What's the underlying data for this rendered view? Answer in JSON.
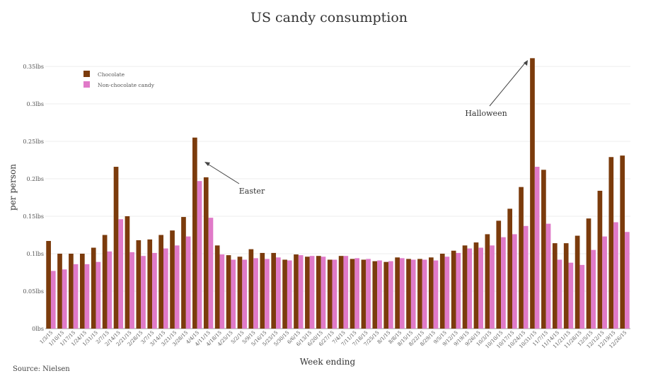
{
  "source": "Source: Nielsen",
  "chart_data": {
    "type": "bar",
    "title": "US candy consumption",
    "xlabel": "Week ending",
    "ylabel": "per person",
    "ylim": [
      0,
      0.35
    ],
    "yticks": [
      0,
      0.05,
      0.1,
      0.15,
      0.2,
      0.25,
      0.3,
      0.35
    ],
    "ytick_labels": [
      "0lbs",
      "0.05lbs",
      "0.1lbs",
      "0.15lbs",
      "0.2lbs",
      "0.25lbs",
      "0.3lbs",
      "0.35lbs"
    ],
    "grid": true,
    "legend_position": "top-left",
    "categories": [
      "1/3/15",
      "1/10/15",
      "1/17/15",
      "1/24/15",
      "1/31/15",
      "2/7/15",
      "2/14/15",
      "2/21/15",
      "2/28/15",
      "3/7/15",
      "3/14/15",
      "3/21/15",
      "3/28/15",
      "4/4/15",
      "4/11/15",
      "4/18/15",
      "4/25/15",
      "5/2/15",
      "5/9/15",
      "5/16/15",
      "5/23/15",
      "5/30/15",
      "6/6/15",
      "6/13/15",
      "6/20/15",
      "6/27/15",
      "7/4/15",
      "7/11/15",
      "7/18/15",
      "7/25/15",
      "8/1/15",
      "8/8/15",
      "8/15/15",
      "8/22/15",
      "8/29/15",
      "9/5/15",
      "9/12/15",
      "9/19/15",
      "9/26/15",
      "10/3/15",
      "10/10/15",
      "10/17/15",
      "10/24/15",
      "10/31/15",
      "11/7/15",
      "11/14/15",
      "11/21/15",
      "11/28/15",
      "12/5/15",
      "12/12/15",
      "12/19/15",
      "12/26/15"
    ],
    "series": [
      {
        "name": "Chocolate",
        "color": "#7b3b0c",
        "values": [
          0.117,
          0.1,
          0.1,
          0.1,
          0.108,
          0.125,
          0.216,
          0.15,
          0.118,
          0.119,
          0.125,
          0.131,
          0.149,
          0.255,
          0.202,
          0.111,
          0.098,
          0.096,
          0.106,
          0.101,
          0.101,
          0.092,
          0.099,
          0.096,
          0.097,
          0.092,
          0.097,
          0.093,
          0.092,
          0.09,
          0.089,
          0.095,
          0.093,
          0.093,
          0.095,
          0.1,
          0.104,
          0.111,
          0.115,
          0.126,
          0.144,
          0.16,
          0.189,
          0.361,
          0.212,
          0.114,
          0.114,
          0.124,
          0.147,
          0.184,
          0.229,
          0.231
        ]
      },
      {
        "name": "Non-chocolate candy",
        "color": "#e07ac8",
        "values": [
          0.077,
          0.079,
          0.086,
          0.086,
          0.089,
          0.103,
          0.146,
          0.102,
          0.097,
          0.101,
          0.107,
          0.111,
          0.123,
          0.197,
          0.148,
          0.099,
          0.092,
          0.092,
          0.094,
          0.093,
          0.095,
          0.091,
          0.098,
          0.097,
          0.096,
          0.092,
          0.097,
          0.094,
          0.093,
          0.091,
          0.09,
          0.094,
          0.092,
          0.092,
          0.091,
          0.096,
          0.101,
          0.107,
          0.108,
          0.111,
          0.122,
          0.126,
          0.137,
          0.216,
          0.14,
          0.092,
          0.088,
          0.085,
          0.105,
          0.123,
          0.142,
          0.129
        ]
      }
    ],
    "annotations": [
      {
        "text": "Easter",
        "category": "4/4/15"
      },
      {
        "text": "Halloween",
        "category": "10/31/15"
      }
    ]
  }
}
